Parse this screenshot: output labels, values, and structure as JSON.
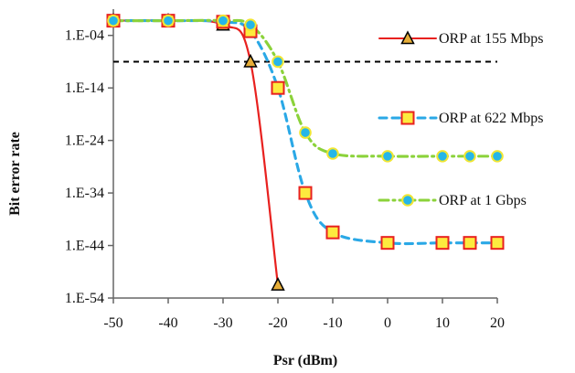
{
  "chart_data": {
    "type": "line",
    "xlabel": "Psr (dBm)",
    "ylabel": "Bit error rate",
    "xlim": [
      -50,
      20
    ],
    "x_ticks": [
      -50,
      -40,
      -30,
      -20,
      -10,
      0,
      10,
      20
    ],
    "x_tick_labels": [
      "-50",
      "-40",
      "-30",
      "-20",
      "-10",
      "0",
      "10",
      "20"
    ],
    "y_scale": "log",
    "ylim_exponent": [
      -54,
      1
    ],
    "y_tick_exponents": [
      -4,
      -14,
      -24,
      -34,
      -44,
      -54
    ],
    "y_tick_labels": [
      "1.E-04",
      "1.E-14",
      "1.E-24",
      "1.E-34",
      "1.E-44",
      "1.E-54"
    ],
    "reference_line": {
      "y_exponent": -9,
      "style": "dashed",
      "color": "#000000"
    },
    "legend": {
      "placement": "right",
      "entries": [
        "ORP at 155 Mbps",
        "ORP at 622 Mbps",
        "ORP at 1 Gbps"
      ]
    },
    "series": [
      {
        "name": "ORP at 155 Mbps",
        "color": "#e8211f",
        "line_style": "solid",
        "marker": "triangle",
        "marker_fill": "#e6ad38",
        "marker_edge": "#000000",
        "x": [
          -50,
          -40,
          -30,
          -25,
          -20
        ],
        "y_exponent": [
          -1.2,
          -1.2,
          -2.0,
          -9.0,
          -51.5
        ]
      },
      {
        "name": "ORP at 622 Mbps",
        "color": "#2aa8e6",
        "line_style": "dashed",
        "marker": "square",
        "marker_fill": "#fdeb3e",
        "marker_edge": "#e8211f",
        "x": [
          -50,
          -40,
          -30,
          -25,
          -20,
          -15,
          -10,
          0,
          10,
          15,
          20
        ],
        "y_exponent": [
          -1.2,
          -1.2,
          -1.4,
          -3.2,
          -14.0,
          -34.0,
          -41.5,
          -43.5,
          -43.5,
          -43.5,
          -43.5
        ]
      },
      {
        "name": "ORP at 1 Gbps",
        "color": "#8bd23a",
        "line_style": "dashdot",
        "marker": "circle",
        "marker_fill": "#25b6e8",
        "marker_edge": "#f1e633",
        "x": [
          -50,
          -40,
          -30,
          -25,
          -20,
          -15,
          -10,
          0,
          10,
          15,
          20
        ],
        "y_exponent": [
          -1.2,
          -1.2,
          -1.2,
          -2.0,
          -9.0,
          -22.5,
          -26.5,
          -27.0,
          -27.0,
          -27.0,
          -27.0
        ]
      }
    ]
  }
}
